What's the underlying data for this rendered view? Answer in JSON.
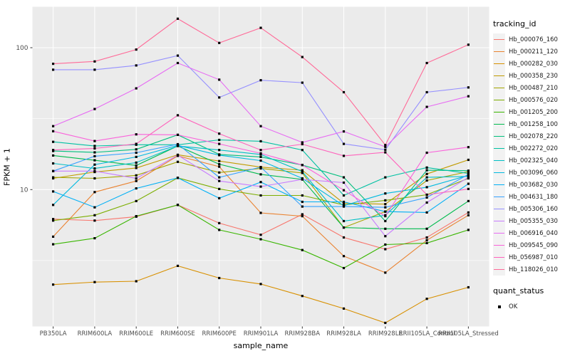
{
  "figure": {
    "x_axis_title": "sample_name",
    "y_axis_title": "FPKM + 1",
    "legend_title": "tracking_id",
    "legend2_title": "quant_status",
    "legend2_items": [
      "OK"
    ],
    "panel_bg": "#EBEBEB",
    "grid_color": "#FFFFFF",
    "axis_text_color": "#4D4D4D",
    "legend_key_bg": "#F2F2F2"
  },
  "chart_data": {
    "type": "line",
    "title": "",
    "xlabel": "sample_name",
    "ylabel": "FPKM + 1",
    "y_scale": "log10",
    "y_ticks": [
      10,
      100
    ],
    "ylim": [
      1.09,
      193
    ],
    "grid": true,
    "legend_position": "right",
    "marker": "black-square",
    "categories": [
      "PB350LA",
      "RRIM600LA",
      "RRIM600LE",
      "RRIM600SE",
      "RRIM600PE",
      "RRIM901LA",
      "RRIM928BA",
      "RRIM928LA",
      "RRIM928LE",
      "RRII105LA_Control",
      "RRII105LA_Stressed"
    ],
    "series": [
      {
        "name": "Hb_000076_160",
        "color": "#F8766D",
        "values": [
          6.2,
          6.05,
          6.45,
          7.8,
          5.8,
          4.8,
          6.7,
          4.6,
          3.8,
          4.6,
          6.9
        ]
      },
      {
        "name": "Hb_000211_120",
        "color": "#EA8331",
        "values": [
          4.66,
          9.6,
          11.5,
          17.3,
          14.5,
          6.85,
          6.5,
          3.4,
          2.6,
          4.4,
          6.6
        ]
      },
      {
        "name": "Hb_000282_030",
        "color": "#D89000",
        "values": [
          2.14,
          2.23,
          2.26,
          2.9,
          2.38,
          2.16,
          1.78,
          1.45,
          1.15,
          1.7,
          2.05
        ]
      },
      {
        "name": "Hb_000358_230",
        "color": "#C09B00",
        "values": [
          12.0,
          13.3,
          14.2,
          17.6,
          15.9,
          14.4,
          13.7,
          8.0,
          7.9,
          12.9,
          16.2
        ]
      },
      {
        "name": "Hb_000487_210",
        "color": "#A3A500",
        "values": [
          12.2,
          12.0,
          12.6,
          15.7,
          13.2,
          14.1,
          13.1,
          5.4,
          7.0,
          11.6,
          13.4
        ]
      },
      {
        "name": "Hb_000576_020",
        "color": "#7CAE00",
        "values": [
          6.05,
          6.6,
          8.3,
          12.1,
          10.1,
          9.1,
          9.1,
          7.8,
          8.4,
          9.2,
          12.0
        ]
      },
      {
        "name": "Hb_001205_200",
        "color": "#39B600",
        "values": [
          4.12,
          4.54,
          6.5,
          7.8,
          5.2,
          4.47,
          3.75,
          2.8,
          4.1,
          4.2,
          5.2
        ]
      },
      {
        "name": "Hb_001258_100",
        "color": "#00BB4E",
        "values": [
          17.4,
          16.1,
          14.8,
          20.3,
          15.1,
          12.8,
          11.8,
          5.4,
          5.3,
          5.3,
          8.3
        ]
      },
      {
        "name": "Hb_002078_220",
        "color": "#00BF7D",
        "values": [
          18.7,
          18.3,
          19.2,
          24.3,
          17.7,
          17.0,
          14.9,
          12.2,
          6.0,
          13.7,
          13.6
        ]
      },
      {
        "name": "Hb_002272_020",
        "color": "#00C1A3",
        "values": [
          21.7,
          20.3,
          20.7,
          20.7,
          22.4,
          21.9,
          19.0,
          9.1,
          12.2,
          14.3,
          13.0
        ]
      },
      {
        "name": "Hb_002325_040",
        "color": "#00BFC4",
        "values": [
          15.3,
          14.1,
          15.5,
          20.3,
          19.0,
          17.7,
          13.4,
          6.0,
          6.6,
          12.2,
          12.4
        ]
      },
      {
        "name": "Hb_003096_060",
        "color": "#00BAE0",
        "values": [
          7.8,
          15.0,
          17.0,
          20.5,
          17.5,
          16.0,
          12.0,
          7.7,
          9.4,
          10.4,
          12.6
        ]
      },
      {
        "name": "Hb_003682_030",
        "color": "#00B0F6",
        "values": [
          9.7,
          7.5,
          10.2,
          12.1,
          8.7,
          11.3,
          8.2,
          8.2,
          7.0,
          6.9,
          11.0
        ]
      },
      {
        "name": "Hb_004631_180",
        "color": "#35A2FF",
        "values": [
          13.5,
          17.2,
          18.2,
          20.9,
          12.2,
          14.4,
          7.6,
          7.6,
          7.5,
          8.8,
          12.8
        ]
      },
      {
        "name": "Hb_005306_160",
        "color": "#9590FF",
        "values": [
          70,
          70,
          75,
          88,
          44.6,
          59,
          56.7,
          21,
          19.1,
          48.6,
          52.5
        ]
      },
      {
        "name": "Hb_005355_030",
        "color": "#C77CFF",
        "values": [
          13.5,
          13.5,
          12.0,
          17.5,
          11.5,
          10.5,
          11.8,
          11.2,
          4.7,
          8.1,
          12.2
        ]
      },
      {
        "name": "Hb_006916_040",
        "color": "#E76BF3",
        "values": [
          28,
          37,
          51.7,
          78,
          59.5,
          28,
          21.5,
          25.7,
          20,
          38.3,
          45.5
        ]
      },
      {
        "name": "Hb_009545_090",
        "color": "#FA62DB",
        "values": [
          25.8,
          22,
          24.5,
          24.3,
          21,
          18,
          14.9,
          9.9,
          6.5,
          18.2,
          19.9
        ]
      },
      {
        "name": "Hb_056987_010",
        "color": "#FF62BC",
        "values": [
          19,
          19.5,
          21,
          33.4,
          24.8,
          19.0,
          20.9,
          17.3,
          18.3,
          9.2,
          10.1
        ]
      },
      {
        "name": "Hb_118026_010",
        "color": "#FF6A98",
        "values": [
          77,
          80,
          97,
          160,
          108,
          138,
          86,
          48.6,
          20.6,
          78,
          105
        ]
      }
    ]
  }
}
